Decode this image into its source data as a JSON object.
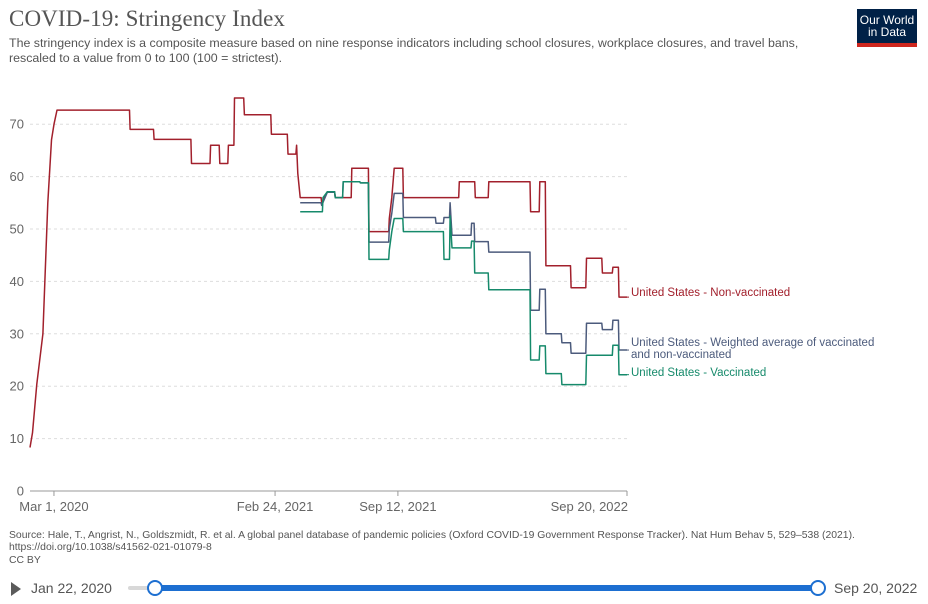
{
  "header": {
    "title": "COVID-19: Stringency Index",
    "subtitle": "The stringency index is a composite measure based on nine response indicators including school closures, workplace closures, and travel bans, rescaled to a value from 0 to 100 (100 = strictest).",
    "logo_line1": "Our World",
    "logo_line2": "in Data"
  },
  "footer": {
    "source": "Source: Hale, T., Angrist, N., Goldszmidt, R. et al. A global panel database of pandemic policies (Oxford COVID-19 Government Response Tracker). Nat Hum Behav 5, 529–538 (2021). https://doi.org/10.1038/s41562-021-01079-8",
    "license": "CC BY"
  },
  "timeline": {
    "start_label": "Jan 22, 2020",
    "end_label": "Sep 20, 2022"
  },
  "chart_data": {
    "type": "line",
    "title": "COVID-19: Stringency Index",
    "ylim": [
      0,
      75
    ],
    "yticks": [
      0,
      10,
      20,
      30,
      40,
      50,
      60,
      70
    ],
    "x_range": [
      "2020-01-22",
      "2022-09-20"
    ],
    "xticks": [
      {
        "date": "2020-03-01",
        "label": "Mar 1, 2020"
      },
      {
        "date": "2021-02-24",
        "label": "Feb 24, 2021"
      },
      {
        "date": "2021-09-12",
        "label": "Sep 12, 2021"
      },
      {
        "date": "2022-09-20",
        "label": "Sep 20, 2022"
      }
    ],
    "grid": "horizontal dashed",
    "legend": "line-end labels, right",
    "series": [
      {
        "name": "United States - Non-vaccinated",
        "color": "#a2202c",
        "points": [
          [
            "2020-01-22",
            8.3
          ],
          [
            "2020-01-26",
            11.1
          ],
          [
            "2020-02-02",
            20.4
          ],
          [
            "2020-02-12",
            30
          ],
          [
            "2020-02-20",
            55
          ],
          [
            "2020-02-26",
            67
          ],
          [
            "2020-03-01",
            70
          ],
          [
            "2020-03-06",
            72.7
          ],
          [
            "2020-07-02",
            72.7
          ],
          [
            "2020-07-03",
            69
          ],
          [
            "2020-08-10",
            69
          ],
          [
            "2020-08-11",
            67.1
          ],
          [
            "2020-10-10",
            67.1
          ],
          [
            "2020-10-11",
            62.5
          ],
          [
            "2020-11-10",
            62.5
          ],
          [
            "2020-11-11",
            66
          ],
          [
            "2020-11-25",
            66
          ],
          [
            "2020-11-26",
            62.5
          ],
          [
            "2020-12-09",
            62.5
          ],
          [
            "2020-12-10",
            66
          ],
          [
            "2020-12-19",
            66
          ],
          [
            "2020-12-20",
            75
          ],
          [
            "2021-01-04",
            75
          ],
          [
            "2021-01-05",
            71.8
          ],
          [
            "2021-02-17",
            71.8
          ],
          [
            "2021-02-18",
            68.1
          ],
          [
            "2021-03-16",
            68.1
          ],
          [
            "2021-03-17",
            64.3
          ],
          [
            "2021-03-30",
            64.3
          ],
          [
            "2021-03-31",
            66
          ],
          [
            "2021-04-02",
            60.6
          ],
          [
            "2021-04-06",
            56
          ],
          [
            "2021-05-10",
            56
          ],
          [
            "2021-05-11",
            55
          ],
          [
            "2021-05-20",
            57.1
          ],
          [
            "2021-06-01",
            57.1
          ],
          [
            "2021-06-02",
            56
          ],
          [
            "2021-06-28",
            56
          ],
          [
            "2021-06-29",
            61.6
          ],
          [
            "2021-07-26",
            61.6
          ],
          [
            "2021-07-27",
            49.5
          ],
          [
            "2021-08-28",
            49.5
          ],
          [
            "2021-08-29",
            52
          ],
          [
            "2021-09-02",
            56
          ],
          [
            "2021-09-06",
            61.6
          ],
          [
            "2021-09-20",
            61.6
          ],
          [
            "2021-09-21",
            56
          ],
          [
            "2021-12-20",
            56
          ],
          [
            "2021-12-21",
            59
          ],
          [
            "2022-01-15",
            59
          ],
          [
            "2022-01-16",
            56
          ],
          [
            "2022-02-06",
            56
          ],
          [
            "2022-02-07",
            59
          ],
          [
            "2022-04-15",
            59
          ],
          [
            "2022-04-16",
            53.3
          ],
          [
            "2022-04-30",
            53.3
          ],
          [
            "2022-05-01",
            59
          ],
          [
            "2022-05-10",
            59
          ],
          [
            "2022-05-11",
            43
          ],
          [
            "2022-06-20",
            43
          ],
          [
            "2022-06-21",
            38.8
          ],
          [
            "2022-07-15",
            38.8
          ],
          [
            "2022-07-16",
            44.4
          ],
          [
            "2022-08-10",
            44.4
          ],
          [
            "2022-08-11",
            41.6
          ],
          [
            "2022-08-27",
            41.6
          ],
          [
            "2022-08-28",
            42.7
          ],
          [
            "2022-09-06",
            42.7
          ],
          [
            "2022-09-07",
            37.0
          ],
          [
            "2022-09-20",
            37.0
          ]
        ]
      },
      {
        "name": "United States - Weighted average of vaccinated and non-vaccinated",
        "color": "#4c5b7c",
        "points": [
          [
            "2021-04-06",
            55
          ],
          [
            "2021-05-10",
            55
          ],
          [
            "2021-05-11",
            54.5
          ],
          [
            "2021-05-20",
            57
          ],
          [
            "2021-06-01",
            57
          ],
          [
            "2021-06-02",
            56
          ],
          [
            "2021-06-14",
            56
          ],
          [
            "2021-06-15",
            59
          ],
          [
            "2021-07-12",
            59
          ],
          [
            "2021-07-13",
            58.8
          ],
          [
            "2021-07-26",
            58.8
          ],
          [
            "2021-07-27",
            47.5
          ],
          [
            "2021-08-28",
            47.5
          ],
          [
            "2021-08-29",
            50
          ],
          [
            "2021-09-02",
            53
          ],
          [
            "2021-09-06",
            56.8
          ],
          [
            "2021-09-20",
            56.8
          ],
          [
            "2021-09-21",
            52.2
          ],
          [
            "2021-11-12",
            52.2
          ],
          [
            "2021-11-13",
            51.1
          ],
          [
            "2021-11-25",
            51.1
          ],
          [
            "2021-11-26",
            52.2
          ],
          [
            "2021-12-05",
            52.2
          ],
          [
            "2021-12-06",
            55
          ],
          [
            "2021-12-09",
            48.8
          ],
          [
            "2022-01-09",
            48.8
          ],
          [
            "2022-01-10",
            51.1
          ],
          [
            "2022-01-14",
            51.1
          ],
          [
            "2022-01-15",
            47.6
          ],
          [
            "2022-02-06",
            47.6
          ],
          [
            "2022-02-07",
            45.6
          ],
          [
            "2022-04-15",
            45.6
          ],
          [
            "2022-04-16",
            34.5
          ],
          [
            "2022-04-30",
            34.5
          ],
          [
            "2022-05-01",
            38.5
          ],
          [
            "2022-05-10",
            38.5
          ],
          [
            "2022-05-11",
            30
          ],
          [
            "2022-06-05",
            30
          ],
          [
            "2022-06-06",
            28.3
          ],
          [
            "2022-06-20",
            28.3
          ],
          [
            "2022-06-21",
            26.3
          ],
          [
            "2022-07-15",
            26.3
          ],
          [
            "2022-07-16",
            32
          ],
          [
            "2022-08-10",
            32
          ],
          [
            "2022-08-11",
            30.8
          ],
          [
            "2022-08-27",
            30.8
          ],
          [
            "2022-08-28",
            32.6
          ],
          [
            "2022-09-06",
            32.6
          ],
          [
            "2022-09-07",
            26.9
          ],
          [
            "2022-09-20",
            26.9
          ]
        ]
      },
      {
        "name": "United States - Vaccinated",
        "color": "#168a6b",
        "points": [
          [
            "2021-04-06",
            53.3
          ],
          [
            "2021-05-12",
            53.3
          ],
          [
            "2021-05-13",
            56
          ],
          [
            "2021-05-20",
            57.1
          ],
          [
            "2021-06-01",
            57.1
          ],
          [
            "2021-06-02",
            56
          ],
          [
            "2021-06-14",
            56
          ],
          [
            "2021-06-15",
            59
          ],
          [
            "2021-07-12",
            59
          ],
          [
            "2021-07-13",
            58.8
          ],
          [
            "2021-07-26",
            58.8
          ],
          [
            "2021-07-27",
            44.2
          ],
          [
            "2021-08-28",
            44.2
          ],
          [
            "2021-08-29",
            46
          ],
          [
            "2021-09-02",
            49.5
          ],
          [
            "2021-09-06",
            52
          ],
          [
            "2021-09-20",
            52
          ],
          [
            "2021-09-21",
            49.5
          ],
          [
            "2021-11-25",
            49.5
          ],
          [
            "2021-11-26",
            44.2
          ],
          [
            "2021-12-05",
            44.2
          ],
          [
            "2021-12-06",
            52.5
          ],
          [
            "2021-12-09",
            46.4
          ],
          [
            "2022-01-09",
            46.4
          ],
          [
            "2022-01-10",
            47.7
          ],
          [
            "2022-01-14",
            47.7
          ],
          [
            "2022-01-15",
            41.6
          ],
          [
            "2022-02-06",
            41.6
          ],
          [
            "2022-02-07",
            38.4
          ],
          [
            "2022-04-15",
            38.4
          ],
          [
            "2022-04-16",
            25
          ],
          [
            "2022-04-30",
            25
          ],
          [
            "2022-05-01",
            27.7
          ],
          [
            "2022-05-10",
            27.7
          ],
          [
            "2022-05-11",
            22.4
          ],
          [
            "2022-06-05",
            22.4
          ],
          [
            "2022-06-06",
            20.3
          ],
          [
            "2022-07-15",
            20.3
          ],
          [
            "2022-07-16",
            25.9
          ],
          [
            "2022-08-27",
            25.9
          ],
          [
            "2022-08-28",
            27.8
          ],
          [
            "2022-09-06",
            27.8
          ],
          [
            "2022-09-07",
            22.2
          ],
          [
            "2022-09-20",
            22.2
          ]
        ]
      }
    ]
  }
}
